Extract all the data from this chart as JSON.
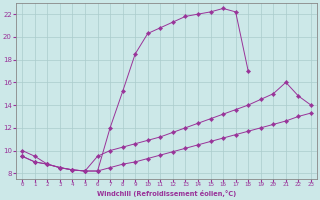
{
  "xlabel": "Windchill (Refroidissement éolien,°C)",
  "background_color": "#cce8e8",
  "line_color": "#993399",
  "grid_color": "#aacccc",
  "xlim": [
    -0.5,
    23.5
  ],
  "ylim": [
    7.5,
    23.0
  ],
  "xticks": [
    0,
    1,
    2,
    3,
    4,
    5,
    6,
    7,
    8,
    9,
    10,
    11,
    12,
    13,
    14,
    15,
    16,
    17,
    18,
    19,
    20,
    21,
    22,
    23
  ],
  "yticks": [
    8,
    10,
    12,
    14,
    16,
    18,
    20,
    22
  ],
  "curve_top_x": [
    0,
    1,
    2,
    3,
    4,
    5,
    6,
    7,
    8,
    9,
    10,
    11,
    12,
    13,
    14,
    15,
    16,
    17,
    18
  ],
  "curve_top_y": [
    10.0,
    9.5,
    8.8,
    8.5,
    8.3,
    8.2,
    8.2,
    12.0,
    15.2,
    18.5,
    20.3,
    20.8,
    21.3,
    21.8,
    22.0,
    22.2,
    22.5,
    22.2,
    17.0
  ],
  "curve_mid_x": [
    0,
    1,
    2,
    3,
    4,
    5,
    6,
    7,
    8,
    9,
    10,
    11,
    12,
    13,
    14,
    15,
    16,
    17,
    18,
    19,
    20,
    21,
    22,
    23
  ],
  "curve_mid_y": [
    9.5,
    9.0,
    8.8,
    8.5,
    8.3,
    8.2,
    9.5,
    10.0,
    10.3,
    10.6,
    10.9,
    11.2,
    11.6,
    12.0,
    12.4,
    12.8,
    13.2,
    13.6,
    14.0,
    14.5,
    15.0,
    16.0,
    14.8,
    14.0
  ],
  "curve_bot_x": [
    0,
    1,
    2,
    3,
    4,
    5,
    6,
    7,
    8,
    9,
    10,
    11,
    12,
    13,
    14,
    15,
    16,
    17,
    18,
    19,
    20,
    21,
    22,
    23
  ],
  "curve_bot_y": [
    9.5,
    9.0,
    8.8,
    8.5,
    8.3,
    8.2,
    8.2,
    8.5,
    8.8,
    9.0,
    9.3,
    9.6,
    9.9,
    10.2,
    10.5,
    10.8,
    11.1,
    11.4,
    11.7,
    12.0,
    12.3,
    12.6,
    13.0,
    13.3
  ],
  "marker": "D",
  "markersize": 2.2,
  "linewidth": 0.7
}
